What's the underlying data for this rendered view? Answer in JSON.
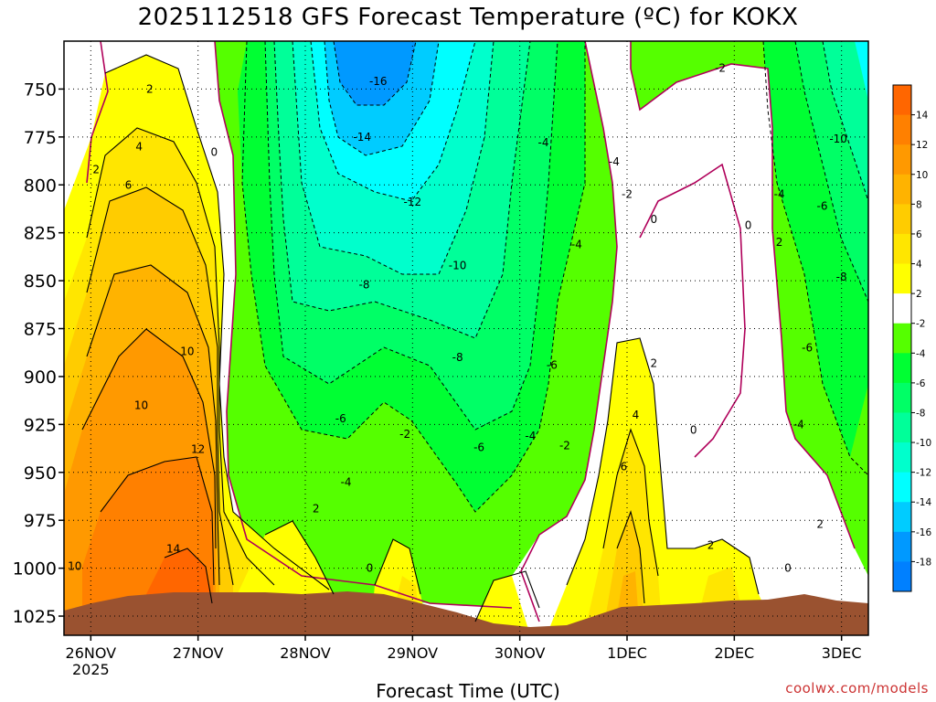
{
  "title": "2025112518 GFS Forecast Temperature (ºC) for KOKX",
  "xlabel": "Forecast Time (UTC)",
  "credit": "coolwx.com/models",
  "chart_data": {
    "type": "heatmap",
    "title": "2025112518 GFS Forecast Temperature (ºC) for KOKX",
    "xlabel": "Forecast Time (UTC)",
    "ylabel": "",
    "x_ticks": [
      "26NOV",
      "27NOV",
      "28NOV",
      "29NOV",
      "30NOV",
      "1DEC",
      "2DEC",
      "3DEC"
    ],
    "x_year_label": "2025",
    "xlim": [
      -0.25,
      7.25
    ],
    "x_tick_values": [
      0,
      1,
      2,
      3,
      4,
      5,
      6,
      7
    ],
    "y_ticks": [
      750,
      775,
      800,
      825,
      850,
      875,
      900,
      925,
      950,
      975,
      1000,
      1025
    ],
    "ylim": [
      1035,
      725
    ],
    "colorbar": {
      "levels": [
        14,
        12,
        10,
        8,
        6,
        4,
        2,
        -2,
        -4,
        -6,
        -8,
        -10,
        -12,
        -14,
        -16,
        -18
      ],
      "colors": [
        "#ff6600",
        "#ff8000",
        "#ff9900",
        "#ffb300",
        "#ffcc00",
        "#ffe600",
        "#ffff00",
        "#ffffff",
        "#55ff00",
        "#00ff33",
        "#00ff66",
        "#00ff99",
        "#00ffcc",
        "#00ffff",
        "#00ccff",
        "#0099ff",
        "#0080ff"
      ]
    },
    "contour_labels": [
      {
        "text": "2",
        "x": 0.55,
        "p": 750
      },
      {
        "text": "2",
        "x": 0.05,
        "p": 792
      },
      {
        "text": "4",
        "x": 0.45,
        "p": 780
      },
      {
        "text": "6",
        "x": 0.35,
        "p": 800
      },
      {
        "text": "0",
        "x": 1.15,
        "p": 783
      },
      {
        "text": "10",
        "x": 0.9,
        "p": 887
      },
      {
        "text": "10",
        "x": 0.47,
        "p": 915
      },
      {
        "text": "12",
        "x": 1.0,
        "p": 938
      },
      {
        "text": "14",
        "x": 0.77,
        "p": 990
      },
      {
        "text": "10",
        "x": -0.15,
        "p": 999
      },
      {
        "text": "-16",
        "x": 2.68,
        "p": 746
      },
      {
        "text": "-14",
        "x": 2.53,
        "p": 775
      },
      {
        "text": "-12",
        "x": 3.0,
        "p": 809
      },
      {
        "text": "-10",
        "x": 3.42,
        "p": 842
      },
      {
        "text": "-8",
        "x": 2.55,
        "p": 852
      },
      {
        "text": "-8",
        "x": 3.42,
        "p": 890
      },
      {
        "text": "-6",
        "x": 2.33,
        "p": 922
      },
      {
        "text": "-2",
        "x": 2.93,
        "p": 930
      },
      {
        "text": "-4",
        "x": 2.38,
        "p": 955
      },
      {
        "text": "-6",
        "x": 3.62,
        "p": 937
      },
      {
        "text": "-4",
        "x": 4.1,
        "p": 931
      },
      {
        "text": "-2",
        "x": 4.42,
        "p": 936
      },
      {
        "text": "-6",
        "x": 4.3,
        "p": 894
      },
      {
        "text": "2",
        "x": 2.1,
        "p": 969
      },
      {
        "text": "0",
        "x": 2.6,
        "p": 1000
      },
      {
        "text": "-4",
        "x": 4.22,
        "p": 778
      },
      {
        "text": "-4",
        "x": 4.53,
        "p": 831
      },
      {
        "text": "-4",
        "x": 4.88,
        "p": 788
      },
      {
        "text": "-2",
        "x": 5.0,
        "p": 805
      },
      {
        "text": "0",
        "x": 5.25,
        "p": 818
      },
      {
        "text": "0",
        "x": 6.13,
        "p": 821
      },
      {
        "text": "-2",
        "x": 5.87,
        "p": 739
      },
      {
        "text": "2",
        "x": 5.25,
        "p": 893
      },
      {
        "text": "4",
        "x": 5.08,
        "p": 920
      },
      {
        "text": "0",
        "x": 5.62,
        "p": 928
      },
      {
        "text": "6",
        "x": 4.97,
        "p": 947
      },
      {
        "text": "2",
        "x": 5.78,
        "p": 988
      },
      {
        "text": "0",
        "x": 6.5,
        "p": 1000
      },
      {
        "text": "-4",
        "x": 6.42,
        "p": 805
      },
      {
        "text": "2",
        "x": 6.42,
        "p": 830
      },
      {
        "text": "-6",
        "x": 6.82,
        "p": 811
      },
      {
        "text": "-6",
        "x": 6.68,
        "p": 885
      },
      {
        "text": "-8",
        "x": 7.0,
        "p": 848
      },
      {
        "text": "-10",
        "x": 6.97,
        "p": 776
      },
      {
        "text": "-4",
        "x": 6.6,
        "p": 925
      },
      {
        "text": "2",
        "x": 6.8,
        "p": 977
      }
    ],
    "grid": true
  }
}
